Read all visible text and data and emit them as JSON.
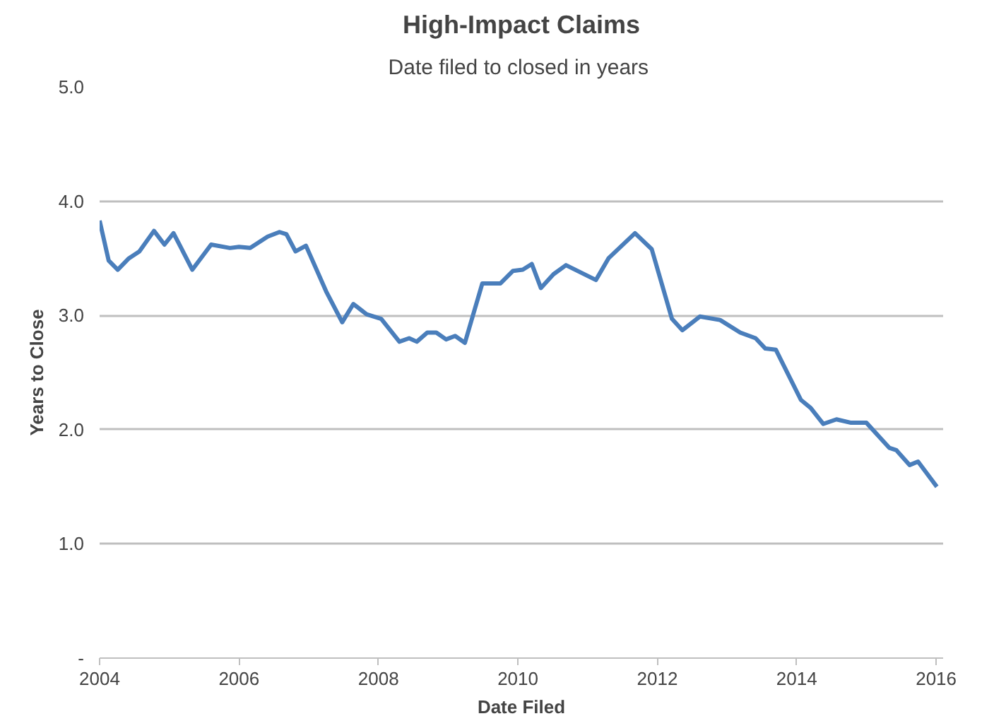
{
  "chart_data": {
    "type": "line",
    "title": "High-Impact Claims",
    "subtitle": "Date filed to  closed in years",
    "xlabel": "Date Filed",
    "ylabel": "Years to Close",
    "x": [
      2004.0,
      2004.13,
      2004.26,
      2004.42,
      2004.57,
      2004.78,
      2004.93,
      2005.06,
      2005.33,
      2005.6,
      2005.87,
      2006.0,
      2006.16,
      2006.41,
      2006.58,
      2006.68,
      2006.81,
      2006.96,
      2007.25,
      2007.48,
      2007.64,
      2007.83,
      2008.04,
      2008.3,
      2008.44,
      2008.55,
      2008.7,
      2008.83,
      2008.97,
      2009.1,
      2009.24,
      2009.49,
      2009.75,
      2009.93,
      2010.07,
      2010.2,
      2010.33,
      2010.51,
      2010.69,
      2011.12,
      2011.3,
      2011.68,
      2011.92,
      2012.21,
      2012.36,
      2012.61,
      2012.9,
      2013.19,
      2013.41,
      2013.55,
      2013.7,
      2014.06,
      2014.2,
      2014.38,
      2014.57,
      2014.78,
      2015.0,
      2015.33,
      2015.43,
      2015.62,
      2015.74,
      2016.01
    ],
    "series": [
      {
        "color": "#4a7ebb",
        "values": [
          3.83,
          3.48,
          3.4,
          3.5,
          3.56,
          3.74,
          3.62,
          3.72,
          3.4,
          3.62,
          3.59,
          3.6,
          3.59,
          3.69,
          3.73,
          3.71,
          3.56,
          3.61,
          3.21,
          2.94,
          3.1,
          3.01,
          2.97,
          2.77,
          2.8,
          2.77,
          2.85,
          2.85,
          2.79,
          2.82,
          2.76,
          3.28,
          3.28,
          3.39,
          3.4,
          3.45,
          3.24,
          3.36,
          3.44,
          3.31,
          3.5,
          3.72,
          3.58,
          2.97,
          2.87,
          2.99,
          2.96,
          2.85,
          2.8,
          2.71,
          2.7,
          2.26,
          2.19,
          2.05,
          2.09,
          2.06,
          2.06,
          1.84,
          1.82,
          1.69,
          1.72,
          1.5
        ]
      }
    ],
    "xlim": [
      2004,
      2016.1
    ],
    "xticks": [
      2004,
      2006,
      2008,
      2010,
      2012,
      2014,
      2016
    ],
    "ylim": [
      0,
      5
    ],
    "yticks": [
      {
        "value": 0,
        "label": "-"
      },
      {
        "value": 1,
        "label": "1.0"
      },
      {
        "value": 2,
        "label": "2.0"
      },
      {
        "value": 3,
        "label": "3.0"
      },
      {
        "value": 4,
        "label": "4.0"
      },
      {
        "value": 5,
        "label": "5.0"
      }
    ],
    "grid": "y",
    "marker": "none",
    "line_style": "solid"
  }
}
